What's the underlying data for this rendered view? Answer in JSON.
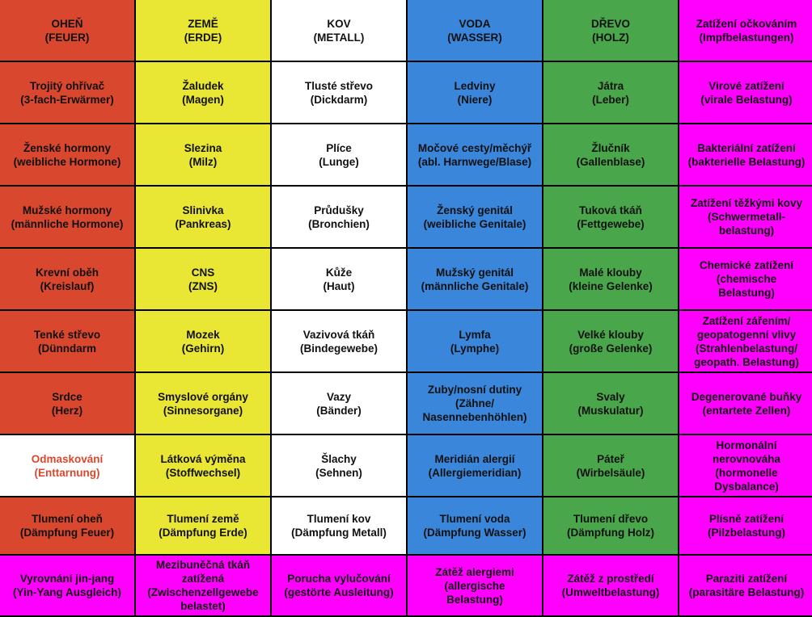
{
  "colors": {
    "fire": "#d9482e",
    "earth": "#e9e634",
    "metal": "#ffffff",
    "water": "#3a86db",
    "wood": "#4aa64a",
    "pink": "#ff00ff",
    "highlight_text": "#d9482e"
  },
  "rows": [
    [
      "OHEŇ\n(FEUER)",
      "ZEMĚ\n(ERDE)",
      "KOV\n(METALL)",
      "VODA\n(WASSER)",
      "DŘEVO\n(HOLZ)",
      "Zatížení očkováním\n(Impfbelastungen)"
    ],
    [
      "Trojitý ohřívač\n(3-fach-Erwärmer)",
      "Žaludek\n(Magen)",
      "Tlusté střevo\n(Dickdarm)",
      "Ledviny\n(Niere)",
      "Játra\n(Leber)",
      "Virové zatížení\n(virale Belastung)"
    ],
    [
      "Ženské hormony\n(weibliche Hormone)",
      "Slezina\n(Milz)",
      "Plíce\n(Lunge)",
      "Močové cesty/měchýř\n(abl. Harnwege/Blase)",
      "Žlučník\n(Gallenblase)",
      "Bakteriální zatížení\n(bakterielle Belastung)"
    ],
    [
      "Mužské hormony\n(männliche Hormone)",
      "Slinivka\n(Pankreas)",
      "Průdušky\n(Bronchien)",
      "Ženský genitál\n(weibliche Genitale)",
      "Tuková tkáň\n(Fettgewebe)",
      "Zatížení těžkými kovy\n(Schwermetall-\nbelastung)"
    ],
    [
      "Krevní oběh\n(Kreislauf)",
      "CNS\n(ZNS)",
      "Kůže\n(Haut)",
      "Mužský genitál\n(männliche Genitale)",
      "Malé klouby\n(kleine Gelenke)",
      "Chemické zatížení\n(chemische\nBelastung)"
    ],
    [
      "Tenké střevo\n(Dünndarm",
      "Mozek\n(Gehirn)",
      "Vazivová tkáň\n(Bindegewebe)",
      "Lymfa\n(Lymphe)",
      "Velké klouby\n(große Gelenke)",
      "Zatížení zářením/\ngeopatogenní vlivy\n(Strahlenbelastung/\ngeopath. Belastung)"
    ],
    [
      "Srdce\n(Herz)",
      "Smyslové orgány\n(Sinnesorgane)",
      "Vazy\n(Bänder)",
      "Zuby/nosní dutiny\n(Zähne/\nNasennebenhöhlen)",
      "Svaly\n(Muskulatur)",
      "Degenerované buňky\n(entartete Zellen)"
    ],
    [
      "Odmaskování\n(Enttarnung)",
      "Látková výměna\n(Stoffwechsel)",
      "Šlachy\n(Sehnen)",
      "Meridián alergií\n(Allergiemeridian)",
      "Páteř\n(Wirbelsäule)",
      "Hormonální\nnerovnováha\n(hormonelle\nDysbalance)"
    ],
    [
      "Tlumení oheň\n(Dämpfung Feuer)",
      "Tlumení země\n(Dämpfung Erde)",
      "Tlumení kov\n(Dämpfung Metall)",
      "Tlumení voda\n(Dämpfung Wasser)",
      "Tlumení dřevo\n(Dämpfung Holz)",
      "Plísně zatížení\n(Pilzbelastung)"
    ],
    [
      "Vyrovnání jin-jang\n(Yin-Yang Ausgleich)",
      "Mezibuněčná tkáň\nzatížená\n(Zwischenzellgewebe\nbelastet)",
      "Porucha vylučování\n(gestörte Ausleitung)",
      "Zátěž alergiemi\n(allergische\nBelastung)",
      "Zátěž z prostředí\n(Umweltbelastung)",
      "Paraziti zatížení\n(parasitäre Belastung)"
    ]
  ]
}
